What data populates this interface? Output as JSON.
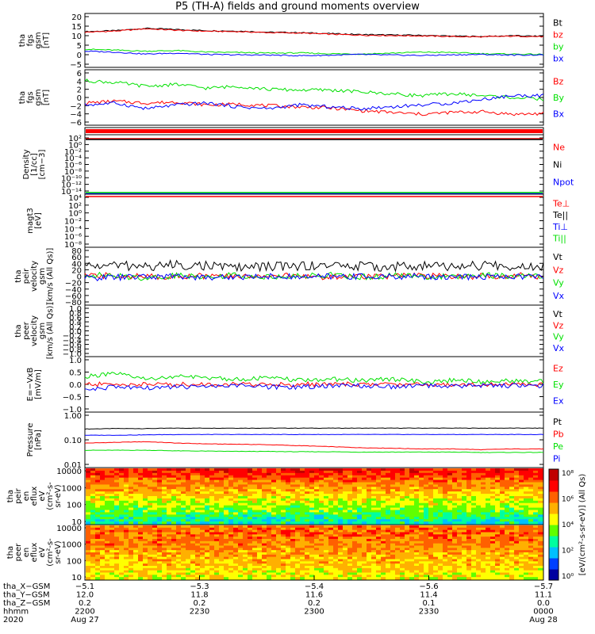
{
  "title": "P5 (TH-A) fields and ground moments overview",
  "colors": {
    "black": "#000000",
    "red": "#ff0000",
    "green": "#00e000",
    "blue": "#0000ff"
  },
  "chart_data": [
    {
      "type": "line",
      "ylabel": [
        "tha",
        "fgs",
        "gsm",
        "[nT]"
      ],
      "yticks": [
        "20",
        "15",
        "10",
        "5",
        "0",
        "−5"
      ],
      "ylim": [
        -5,
        21
      ],
      "legend": [
        {
          "label": "Bt",
          "color": "black"
        },
        {
          "label": "bz",
          "color": "red"
        },
        {
          "label": "by",
          "color": "green"
        },
        {
          "label": "bx",
          "color": "blue"
        }
      ],
      "series": [
        {
          "name": "Bt",
          "color": "black",
          "values": [
            12.5,
            13.0,
            14.2,
            13.6,
            13.0,
            12.8,
            12.2,
            12.0,
            11.5,
            11.0,
            10.8,
            10.6,
            10.2,
            10.0,
            10.4,
            10.1
          ]
        },
        {
          "name": "bz",
          "color": "red",
          "values": [
            12.2,
            12.8,
            14.0,
            13.2,
            12.7,
            12.5,
            12.0,
            11.8,
            11.2,
            10.7,
            10.5,
            10.3,
            10.0,
            9.8,
            10.2,
            9.9
          ]
        },
        {
          "name": "by",
          "color": "green",
          "values": [
            3.5,
            3.0,
            2.5,
            2.8,
            2.0,
            1.8,
            1.5,
            1.6,
            1.2,
            1.0,
            1.5,
            2.0,
            1.8,
            1.2,
            1.0,
            0.8
          ]
        },
        {
          "name": "bx",
          "color": "blue",
          "values": [
            2.5,
            2.0,
            1.0,
            1.5,
            0.8,
            0.6,
            0.5,
            0.2,
            0.4,
            0.8,
            0.5,
            0.3,
            0.6,
            0.8,
            0.5,
            0.6
          ]
        }
      ]
    },
    {
      "type": "line",
      "ylabel": [
        "tha",
        "fgs",
        "gsm",
        "[nT]"
      ],
      "yticks": [
        "6",
        "4",
        "2",
        "0",
        "−2",
        "−4",
        "−6"
      ],
      "ylim": [
        -7,
        7
      ],
      "legend": [
        {
          "label": "Bz",
          "color": "red"
        },
        {
          "label": "By",
          "color": "green"
        },
        {
          "label": "Bx",
          "color": "blue"
        }
      ],
      "series": [
        {
          "name": "Bz",
          "color": "red",
          "values": [
            -1.5,
            -1.0,
            -1.5,
            -1.2,
            -2.0,
            -1.8,
            -2.2,
            -2.5,
            -2.8,
            -3.5,
            -4.0,
            -4.5,
            -4.0,
            -3.8,
            -4.5,
            -4.3
          ]
        },
        {
          "name": "By",
          "color": "green",
          "values": [
            4.5,
            4.0,
            3.0,
            3.5,
            2.5,
            3.0,
            2.2,
            2.0,
            2.0,
            1.5,
            1.0,
            0.5,
            1.0,
            0.5,
            0.0,
            -0.5
          ]
        },
        {
          "name": "Bx",
          "color": "blue",
          "values": [
            -2.0,
            -1.5,
            -3.0,
            -2.0,
            -1.5,
            -2.5,
            -3.0,
            -2.0,
            -2.5,
            -3.0,
            -2.5,
            -2.0,
            -1.5,
            -0.5,
            0.5,
            0.5
          ]
        }
      ]
    },
    {
      "type": "line",
      "ylabel": [
        "Density",
        "[1/cc]",
        "[cm−3]"
      ],
      "yticks": [
        "10²",
        "10⁰",
        "10⁻²",
        "10⁻⁴",
        "10⁻⁶",
        "10⁻⁸",
        "10⁻¹⁰",
        "10⁻¹²",
        "10⁻¹⁴"
      ],
      "legend": [
        {
          "label": "Ne",
          "color": "red"
        },
        {
          "label": "Ni",
          "color": "black"
        },
        {
          "label": "Npot",
          "color": "blue"
        }
      ]
    },
    {
      "type": "line",
      "ylabel": [
        "magt3",
        "[eV]"
      ],
      "yticks": [
        "10⁴",
        "10²",
        "10⁰",
        "10⁻²",
        "10⁻⁴",
        "10⁻⁶",
        "10⁻⁸"
      ],
      "legend": [
        {
          "label": "Te⊥",
          "color": "red"
        },
        {
          "label": "Te||",
          "color": "black"
        },
        {
          "label": "Ti⊥",
          "color": "blue"
        },
        {
          "label": "Ti||",
          "color": "green"
        }
      ]
    },
    {
      "type": "line",
      "ylabel": [
        "tha",
        "peir",
        "velocity",
        "gsm",
        "[km/s (All Qs)]"
      ],
      "yticks": [
        "80",
        "60",
        "40",
        "20",
        "0",
        "−20",
        "−40",
        "−60",
        "−80"
      ],
      "ylim": [
        -80,
        80
      ],
      "legend": [
        {
          "label": "Vt",
          "color": "black"
        },
        {
          "label": "Vz",
          "color": "red"
        },
        {
          "label": "Vy",
          "color": "green"
        },
        {
          "label": "Vx",
          "color": "blue"
        }
      ],
      "series": [
        {
          "name": "Vt",
          "color": "black",
          "values": [
            30,
            32,
            28,
            34,
            30,
            26,
            28,
            30,
            32,
            29,
            27,
            30,
            28,
            31,
            29,
            30
          ]
        },
        {
          "name": "Vz",
          "color": "red",
          "values": [
            0,
            2,
            -2,
            1,
            0,
            -1,
            2,
            0,
            -2,
            1,
            0,
            1,
            -1,
            0,
            2,
            0
          ]
        },
        {
          "name": "Vy",
          "color": "green",
          "values": [
            5,
            0,
            -5,
            2,
            0,
            3,
            -2,
            0,
            4,
            -3,
            1,
            0,
            -2,
            3,
            0,
            1
          ]
        },
        {
          "name": "Vx",
          "color": "blue",
          "values": [
            -5,
            -3,
            -2,
            0,
            -4,
            -2,
            0,
            -3,
            -1,
            0,
            -2,
            0,
            -3,
            -1,
            0,
            -2
          ]
        }
      ]
    },
    {
      "type": "line",
      "ylabel": [
        "tha",
        "peer",
        "velocity",
        "gsm",
        "[km/s (All Qs)]"
      ],
      "yticks": [
        "1.0",
        "0.8",
        "0.6",
        "0.4",
        "0.2",
        "0.0",
        "−0.2",
        "−0.4",
        "−0.6",
        "−0.8",
        "−1.0"
      ],
      "ylim": [
        -1,
        1
      ],
      "legend": [
        {
          "label": "Vt",
          "color": "black"
        },
        {
          "label": "Vz",
          "color": "red"
        },
        {
          "label": "Vy",
          "color": "green"
        },
        {
          "label": "Vx",
          "color": "blue"
        }
      ]
    },
    {
      "type": "line",
      "ylabel": [
        "E=−VxB",
        "[mV/m]"
      ],
      "yticks": [
        "1.0",
        "0.5",
        "0.0",
        "−0.5",
        "−1.0"
      ],
      "ylim": [
        -1,
        1
      ],
      "legend": [
        {
          "label": "Ez",
          "color": "red"
        },
        {
          "label": "Ey",
          "color": "green"
        },
        {
          "label": "Ex",
          "color": "blue"
        }
      ],
      "series": [
        {
          "name": "Ez",
          "color": "red",
          "values": [
            0,
            0,
            0,
            0,
            0,
            0,
            0,
            0,
            0,
            0,
            0,
            0,
            0,
            0,
            0,
            0
          ]
        },
        {
          "name": "Ey",
          "color": "green",
          "values": [
            0.3,
            0.4,
            0.2,
            0.3,
            0.25,
            0.2,
            0.25,
            0.15,
            0.2,
            0.15,
            0.2,
            0.1,
            0.15,
            0.1,
            0.15,
            0.1
          ]
        },
        {
          "name": "Ex",
          "color": "blue",
          "values": [
            -0.2,
            -0.1,
            -0.15,
            -0.1,
            -0.1,
            -0.05,
            -0.1,
            -0.1,
            -0.05,
            -0.05,
            -0.1,
            -0.05,
            -0.05,
            -0.05,
            -0.05,
            -0.05
          ]
        }
      ]
    },
    {
      "type": "line",
      "ylabel": [
        "Pressure",
        "[nPa]"
      ],
      "yticks": [
        "1.00",
        "0.10",
        "0.01"
      ],
      "log": true,
      "ylim": [
        0.01,
        1
      ],
      "legend": [
        {
          "label": "Pt",
          "color": "black"
        },
        {
          "label": "Pb",
          "color": "red"
        },
        {
          "label": "Pe",
          "color": "green"
        },
        {
          "label": "Pi",
          "color": "blue"
        }
      ],
      "series": [
        {
          "name": "Pt",
          "color": "black",
          "values": [
            0.26,
            0.27,
            0.27,
            0.28,
            0.28,
            0.28,
            0.28,
            0.28,
            0.28,
            0.28,
            0.28,
            0.28,
            0.28,
            0.28,
            0.28,
            0.28
          ]
        },
        {
          "name": "Pb",
          "color": "red",
          "values": [
            0.075,
            0.08,
            0.085,
            0.075,
            0.07,
            0.068,
            0.065,
            0.06,
            0.055,
            0.05,
            0.048,
            0.045,
            0.045,
            0.042,
            0.045,
            0.045
          ]
        },
        {
          "name": "Pe",
          "color": "green",
          "values": [
            0.04,
            0.04,
            0.04,
            0.038,
            0.037,
            0.036,
            0.036,
            0.035,
            0.035,
            0.034,
            0.034,
            0.034,
            0.034,
            0.033,
            0.033,
            0.033
          ]
        },
        {
          "name": "Pi",
          "color": "blue",
          "values": [
            0.15,
            0.15,
            0.155,
            0.16,
            0.16,
            0.16,
            0.16,
            0.16,
            0.16,
            0.16,
            0.16,
            0.16,
            0.16,
            0.16,
            0.16,
            0.16
          ]
        }
      ]
    },
    {
      "type": "heatmap",
      "ylabel": [
        "tha",
        "peir",
        "en",
        "eflux",
        "eV",
        "(cm²-s-",
        "sr-eV)"
      ],
      "yticks": [
        "10000",
        "1000",
        "100",
        "10"
      ],
      "log": true
    },
    {
      "type": "heatmap",
      "ylabel": [
        "tha",
        "peer",
        "en",
        "eflux",
        "eV",
        "(cm²-s-",
        "sr-eV)"
      ],
      "yticks": [
        "10000",
        "1000",
        "100",
        "10"
      ],
      "log": true
    }
  ],
  "colorbar": {
    "label": "[eV/(cm²-s-sr-eV)] (All Qs)",
    "ticks": [
      "10⁸",
      "10⁶",
      "10⁴",
      "10²",
      "10⁰"
    ]
  },
  "x_axis": {
    "rows": [
      {
        "label": "tha_X−GSM",
        "values": [
          "−5.1",
          "−5.3",
          "−5.4",
          "−5.6",
          "−5.7"
        ]
      },
      {
        "label": "tha_Y−GSM",
        "values": [
          "12.0",
          "11.8",
          "11.6",
          "11.4",
          "11.1"
        ]
      },
      {
        "label": "tha_Z−GSM",
        "values": [
          "0.2",
          "0.2",
          "0.2",
          "0.1",
          "0.0"
        ]
      },
      {
        "label": "hhmm",
        "values": [
          "2200",
          "2230",
          "2300",
          "2330",
          "0000"
        ]
      },
      {
        "label": "2020",
        "values": [
          "Aug 27",
          "",
          "",
          "",
          "Aug 28"
        ]
      }
    ]
  }
}
